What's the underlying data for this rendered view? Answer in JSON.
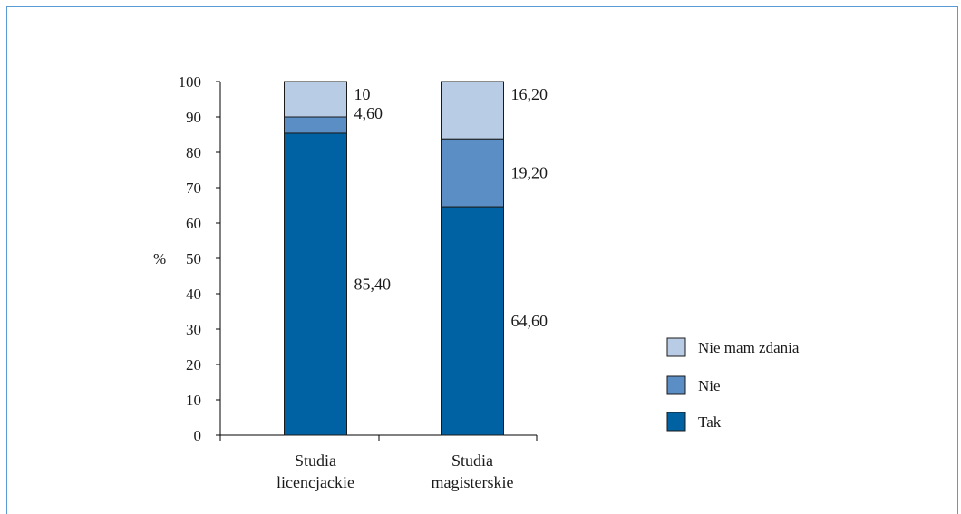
{
  "chart_data": {
    "type": "bar",
    "stacked": true,
    "categories": [
      "Studia licencjackie",
      "Studia magisterskie"
    ],
    "category_lines": [
      [
        "Studia",
        "licencjackie"
      ],
      [
        "Studia",
        "magisterskie"
      ]
    ],
    "series": [
      {
        "name": "Tak",
        "values": [
          85.4,
          64.6
        ],
        "labels": [
          "85,40",
          "64,60"
        ],
        "color": "#0062a3"
      },
      {
        "name": "Nie",
        "values": [
          4.6,
          19.2
        ],
        "labels": [
          "4,60",
          "19,20"
        ],
        "color": "#5b8ec4"
      },
      {
        "name": "Nie mam zdania",
        "values": [
          10,
          16.2
        ],
        "labels": [
          "10",
          "16,20"
        ],
        "color": "#b8cde5"
      }
    ],
    "legend_order": [
      "Nie mam zdania",
      "Nie",
      "Tak"
    ],
    "legend_position": "right",
    "ylabel": "%",
    "ylim": [
      0,
      100
    ],
    "yticks": [
      0,
      10,
      20,
      30,
      40,
      50,
      60,
      70,
      80,
      90,
      100
    ],
    "grid": false
  }
}
